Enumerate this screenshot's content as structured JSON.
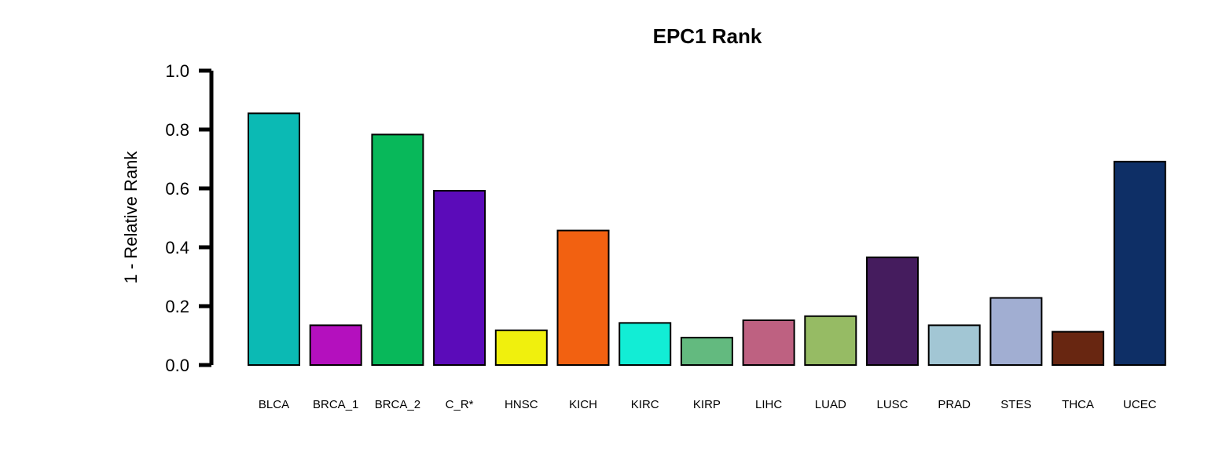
{
  "chart_data": {
    "type": "bar",
    "title": "EPC1 Rank",
    "xlabel": "",
    "ylabel": "1 - Relative Rank",
    "ylim": [
      0,
      1
    ],
    "yticks": [
      "0.0",
      "0.2",
      "0.4",
      "0.6",
      "0.8",
      "1.0"
    ],
    "grid": false,
    "categories": [
      "BLCA",
      "BRCA_1",
      "BRCA_2",
      "C_R*",
      "HNSC",
      "KICH",
      "KIRC",
      "KIRP",
      "LIHC",
      "LUAD",
      "LUSC",
      "PRAD",
      "STES",
      "THCA",
      "UCEC"
    ],
    "values": [
      0.855,
      0.135,
      0.783,
      0.592,
      0.118,
      0.457,
      0.143,
      0.093,
      0.152,
      0.166,
      0.366,
      0.135,
      0.228,
      0.113,
      0.691
    ],
    "colors": [
      "#0BBAB4",
      "#B410BE",
      "#08B85A",
      "#5B0BB9",
      "#F0F00D",
      "#F26111",
      "#12EDD5",
      "#63BA7F",
      "#BE6181",
      "#96BB64",
      "#451C5E",
      "#A2C6D4",
      "#A1AED2",
      "#682611",
      "#0E2F66"
    ]
  }
}
